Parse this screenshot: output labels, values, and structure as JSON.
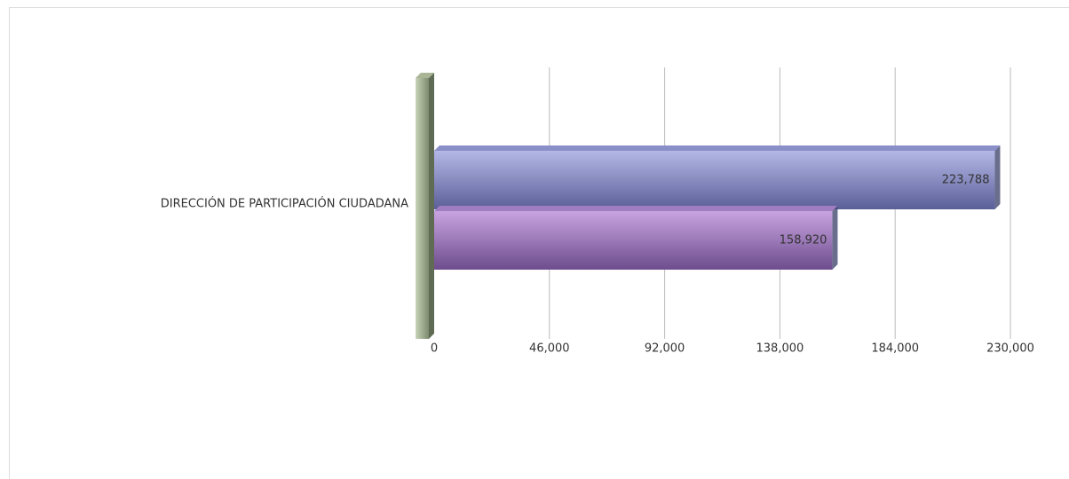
{
  "chart_data": {
    "type": "bar",
    "orientation": "horizontal",
    "categories": [
      "DIRECCIÓN DE PARTICIPACIÓN CIUDADANA"
    ],
    "series": [
      {
        "color": "#8a8fc8",
        "values": [
          223788
        ],
        "value_labels": [
          "223,788"
        ]
      },
      {
        "color": "#a07cc0",
        "values": [
          158920
        ],
        "value_labels": [
          "158,920"
        ]
      }
    ],
    "xlim": [
      0,
      230000
    ],
    "xticks": [
      0,
      {
        "value": 46000,
        "label": "46,000"
      },
      {
        "value": 92000,
        "label": "92,000"
      },
      {
        "value": 138000,
        "label": "138,000"
      },
      {
        "value": 184000,
        "label": "184,000"
      },
      {
        "value": 230000,
        "label": "230,000"
      }
    ],
    "grid": true
  }
}
